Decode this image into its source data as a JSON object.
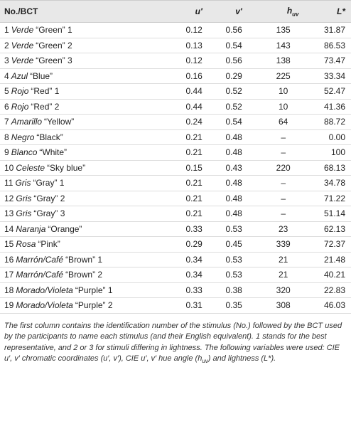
{
  "table": {
    "header": [
      {
        "text": "No./BCT"
      },
      {
        "text": "u′"
      },
      {
        "text": "v′"
      },
      {
        "text": "h",
        "sub": "uv"
      },
      {
        "text": "L*"
      }
    ],
    "rows": [
      [
        {
          "no": "1",
          "term": "Verde",
          "english": "“Green” 1"
        },
        "0.12",
        "0.56",
        "135",
        "31.87"
      ],
      [
        {
          "no": "2",
          "term": "Verde",
          "english": "“Green” 2"
        },
        "0.13",
        "0.54",
        "143",
        "86.53"
      ],
      [
        {
          "no": "3",
          "term": "Verde",
          "english": "“Green” 3"
        },
        "0.12",
        "0.56",
        "138",
        "73.47"
      ],
      [
        {
          "no": "4",
          "term": "Azul",
          "english": "“Blue”"
        },
        "0.16",
        "0.29",
        "225",
        "33.34"
      ],
      [
        {
          "no": "5",
          "term": "Rojo",
          "english": "“Red” 1"
        },
        "0.44",
        "0.52",
        "10",
        "52.47"
      ],
      [
        {
          "no": "6",
          "term": "Rojo",
          "english": "“Red” 2"
        },
        "0.44",
        "0.52",
        "10",
        "41.36"
      ],
      [
        {
          "no": "7",
          "term": "Amarillo",
          "english": "“Yellow”"
        },
        "0.24",
        "0.54",
        "64",
        "88.72"
      ],
      [
        {
          "no": "8",
          "term": "Negro",
          "english": "“Black”"
        },
        "0.21",
        "0.48",
        "–",
        "0.00"
      ],
      [
        {
          "no": "9",
          "term": "Blanco",
          "english": "“White”"
        },
        "0.21",
        "0.48",
        "–",
        "100"
      ],
      [
        {
          "no": "10",
          "term": "Celeste",
          "english": "“Sky blue”"
        },
        "0.15",
        "0.43",
        "220",
        "68.13"
      ],
      [
        {
          "no": "11",
          "term": "Gris",
          "english": "“Gray” 1"
        },
        "0.21",
        "0.48",
        "–",
        "34.78"
      ],
      [
        {
          "no": "12",
          "term": "Gris",
          "english": "“Gray” 2"
        },
        "0.21",
        "0.48",
        "–",
        "71.22"
      ],
      [
        {
          "no": "13",
          "term": "Gris",
          "english": "“Gray” 3"
        },
        "0.21",
        "0.48",
        "–",
        "51.14"
      ],
      [
        {
          "no": "14",
          "term": "Naranja",
          "english": "“Orange”"
        },
        "0.33",
        "0.53",
        "23",
        "62.13"
      ],
      [
        {
          "no": "15",
          "term": "Rosa",
          "english": "“Pink”"
        },
        "0.29",
        "0.45",
        "339",
        "72.37"
      ],
      [
        {
          "no": "16",
          "term": "Marrón/Café",
          "english": "“Brown” 1"
        },
        "0.34",
        "0.53",
        "21",
        "21.48"
      ],
      [
        {
          "no": "17",
          "term": "Marrón/Café",
          "english": "“Brown” 2"
        },
        "0.34",
        "0.53",
        "21",
        "40.21"
      ],
      [
        {
          "no": "18",
          "term": "Morado/Violeta",
          "english": "“Purple” 1"
        },
        "0.33",
        "0.38",
        "320",
        "22.83"
      ],
      [
        {
          "no": "19",
          "term": "Morado/Violeta",
          "english": "“Purple” 2"
        },
        "0.31",
        "0.35",
        "308",
        "46.03"
      ]
    ]
  },
  "footnote": {
    "before": "The first column contains the identification number of the stimulus (No.) followed by the BCT used by the participants to name each stimulus (and their English equivalent). 1 stands for the best representative, and 2 or 3 for stimuli differing in lightness. The following variables were used: CIE u′, v′ chromatic coordinates (u′, v′), CIE u′, v′ hue angle (h",
    "sub": "uv",
    "after": ") and lightness (L*)."
  }
}
